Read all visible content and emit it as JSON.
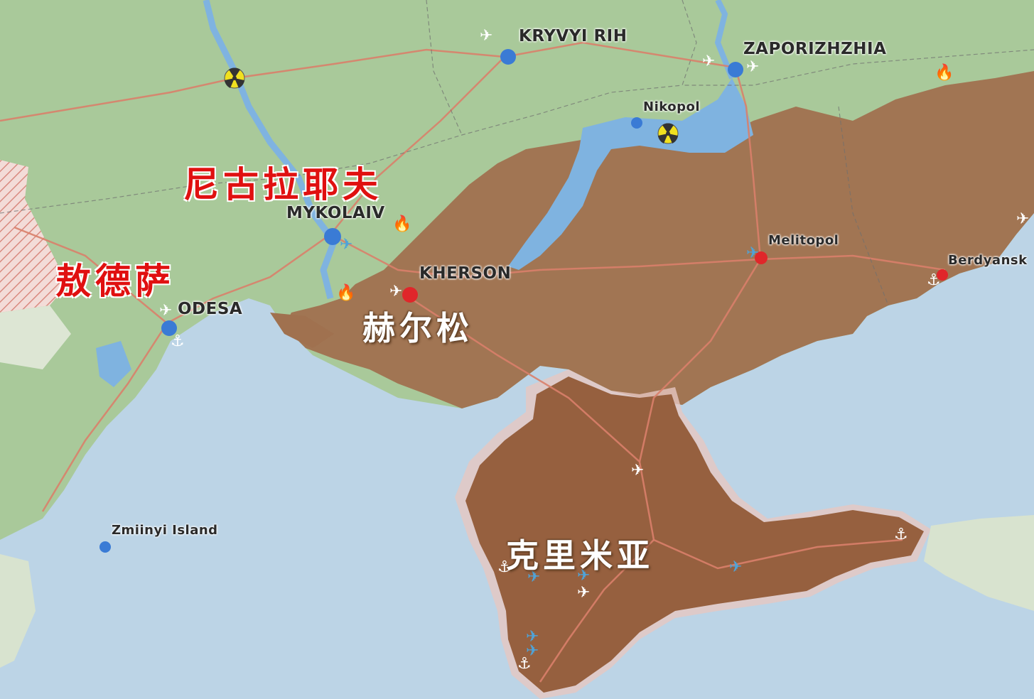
{
  "cities": {
    "kryvyi_rih": "KRYVYI RIH",
    "zaporizhzhia": "ZAPORIZHZHIA",
    "nikopol": "Nikopol",
    "mykolaiv": "MYKOLAIV",
    "kherson": "KHERSON",
    "odesa": "ODESA",
    "melitopol": "Melitopol",
    "berdyansk": "Berdyansk",
    "zmiinyi": "Zmiinyi Island"
  },
  "regions_cn": {
    "mykolaiv": "尼古拉耶夫",
    "odesa": "敖德萨",
    "kherson": "赫尔松",
    "crimea": "克里米亚"
  },
  "colors": {
    "sea": "#bcd4e6",
    "land": "#a9c99a",
    "occupied": "#a0714f",
    "crimea": "#96603f",
    "river": "#7fb3e0",
    "road": "#d9806a",
    "city_ukraine": "#3a7bd5",
    "city_occupied": "#e0262a",
    "text_cn_red": "#e01010"
  }
}
